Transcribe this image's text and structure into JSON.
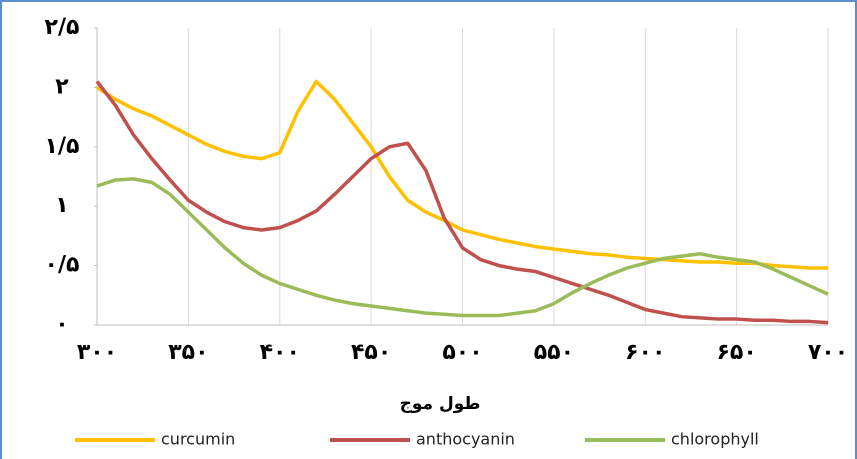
{
  "chart_data": {
    "type": "line",
    "xlabel": "طول موج",
    "x": [
      300,
      310,
      320,
      330,
      340,
      350,
      360,
      370,
      380,
      390,
      400,
      410,
      420,
      430,
      440,
      450,
      460,
      470,
      480,
      490,
      500,
      510,
      520,
      530,
      540,
      550,
      560,
      570,
      580,
      590,
      600,
      610,
      620,
      630,
      640,
      650,
      660,
      670,
      680,
      690,
      700
    ],
    "series": [
      {
        "name": "curcumin",
        "color": "#ffc000",
        "values": [
          2.0,
          1.9,
          1.82,
          1.76,
          1.68,
          1.6,
          1.52,
          1.46,
          1.42,
          1.4,
          1.45,
          1.8,
          2.05,
          1.9,
          1.7,
          1.5,
          1.25,
          1.05,
          0.95,
          0.88,
          0.8,
          0.76,
          0.72,
          0.69,
          0.66,
          0.64,
          0.62,
          0.6,
          0.59,
          0.57,
          0.56,
          0.55,
          0.54,
          0.53,
          0.53,
          0.52,
          0.52,
          0.5,
          0.49,
          0.48,
          0.48
        ]
      },
      {
        "name": "anthocyanin",
        "color": "#c0504d",
        "values": [
          2.05,
          1.85,
          1.6,
          1.4,
          1.22,
          1.05,
          0.95,
          0.87,
          0.82,
          0.8,
          0.82,
          0.88,
          0.96,
          1.1,
          1.25,
          1.4,
          1.5,
          1.53,
          1.3,
          0.9,
          0.65,
          0.55,
          0.5,
          0.47,
          0.45,
          0.4,
          0.35,
          0.3,
          0.25,
          0.19,
          0.13,
          0.1,
          0.07,
          0.06,
          0.05,
          0.05,
          0.04,
          0.04,
          0.03,
          0.03,
          0.02
        ]
      },
      {
        "name": "chlorophyll",
        "color": "#9bbb59",
        "values": [
          1.17,
          1.22,
          1.23,
          1.2,
          1.1,
          0.95,
          0.8,
          0.65,
          0.52,
          0.42,
          0.35,
          0.3,
          0.25,
          0.21,
          0.18,
          0.16,
          0.14,
          0.12,
          0.1,
          0.09,
          0.08,
          0.08,
          0.08,
          0.1,
          0.12,
          0.18,
          0.27,
          0.35,
          0.42,
          0.48,
          0.52,
          0.56,
          0.58,
          0.6,
          0.57,
          0.55,
          0.53,
          0.47,
          0.4,
          0.33,
          0.26
        ]
      }
    ],
    "xlim": [
      300,
      700
    ],
    "xticks": [
      {
        "value": 300,
        "label": "۳۰۰"
      },
      {
        "value": 350,
        "label": "۳۵۰"
      },
      {
        "value": 400,
        "label": "۴۰۰"
      },
      {
        "value": 450,
        "label": "۴۵۰"
      },
      {
        "value": 500,
        "label": "۵۰۰"
      },
      {
        "value": 550,
        "label": "۵۵۰"
      },
      {
        "value": 600,
        "label": "۶۰۰"
      },
      {
        "value": 650,
        "label": "۶۵۰"
      },
      {
        "value": 700,
        "label": "۷۰۰"
      }
    ],
    "ylim": [
      0,
      2.5
    ],
    "yticks": [
      {
        "value": 0,
        "label": "۰"
      },
      {
        "value": 0.5,
        "label": "۰/۵"
      },
      {
        "value": 1,
        "label": "۱"
      },
      {
        "value": 1.5,
        "label": "۱/۵"
      },
      {
        "value": 2,
        "label": "۲"
      },
      {
        "value": 2.5,
        "label": "۲/۵"
      }
    ],
    "grid": true,
    "legend": "bottom"
  }
}
